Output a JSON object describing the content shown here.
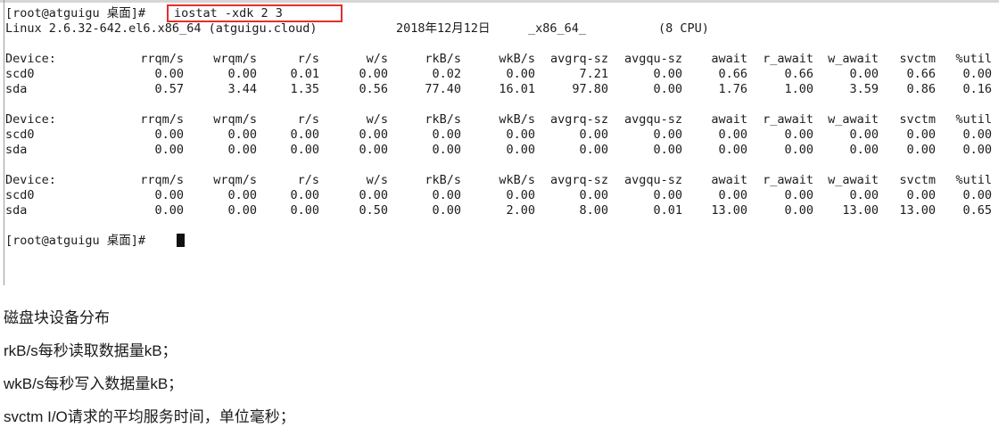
{
  "terminal": {
    "prompt": "[root@atguigu 桌面]#",
    "command": "iostat -xdk 2 3",
    "system_info": {
      "kernel": "Linux 2.6.32-642.el6.x86_64 (atguigu.cloud)",
      "date": "2018年12月12日",
      "arch": "_x86_64_",
      "cpus": "(8 CPU)"
    },
    "columns": [
      "Device:",
      "rrqm/s",
      "wrqm/s",
      "r/s",
      "w/s",
      "rkB/s",
      "wkB/s",
      "avgrq-sz",
      "avgqu-sz",
      "await",
      "r_await",
      "w_await",
      "svctm",
      "%util"
    ],
    "blocks": [
      {
        "rows": [
          [
            "scd0",
            "0.00",
            "0.00",
            "0.01",
            "0.00",
            "0.02",
            "0.00",
            "7.21",
            "0.00",
            "0.66",
            "0.66",
            "0.00",
            "0.66",
            "0.00"
          ],
          [
            "sda",
            "0.57",
            "3.44",
            "1.35",
            "0.56",
            "77.40",
            "16.01",
            "97.80",
            "0.00",
            "1.76",
            "1.00",
            "3.59",
            "0.86",
            "0.16"
          ]
        ]
      },
      {
        "rows": [
          [
            "scd0",
            "0.00",
            "0.00",
            "0.00",
            "0.00",
            "0.00",
            "0.00",
            "0.00",
            "0.00",
            "0.00",
            "0.00",
            "0.00",
            "0.00",
            "0.00"
          ],
          [
            "sda",
            "0.00",
            "0.00",
            "0.00",
            "0.00",
            "0.00",
            "0.00",
            "0.00",
            "0.00",
            "0.00",
            "0.00",
            "0.00",
            "0.00",
            "0.00"
          ]
        ]
      },
      {
        "rows": [
          [
            "scd0",
            "0.00",
            "0.00",
            "0.00",
            "0.00",
            "0.00",
            "0.00",
            "0.00",
            "0.00",
            "0.00",
            "0.00",
            "0.00",
            "0.00",
            "0.00"
          ],
          [
            "sda",
            "0.00",
            "0.00",
            "0.00",
            "0.50",
            "0.00",
            "2.00",
            "8.00",
            "0.01",
            "13.00",
            "0.00",
            "13.00",
            "13.00",
            "0.65"
          ]
        ]
      }
    ],
    "final_prompt": "[root@atguigu 桌面]#"
  },
  "notes": [
    "磁盘块设备分布",
    "rkB/s每秒读取数据量kB；",
    "wkB/s每秒写入数据量kB；",
    "svctm I/O请求的平均服务时间，单位毫秒；"
  ],
  "colors": {
    "highlight": "#e0302c",
    "text": "#1c1c1c",
    "background": "#ffffff"
  }
}
